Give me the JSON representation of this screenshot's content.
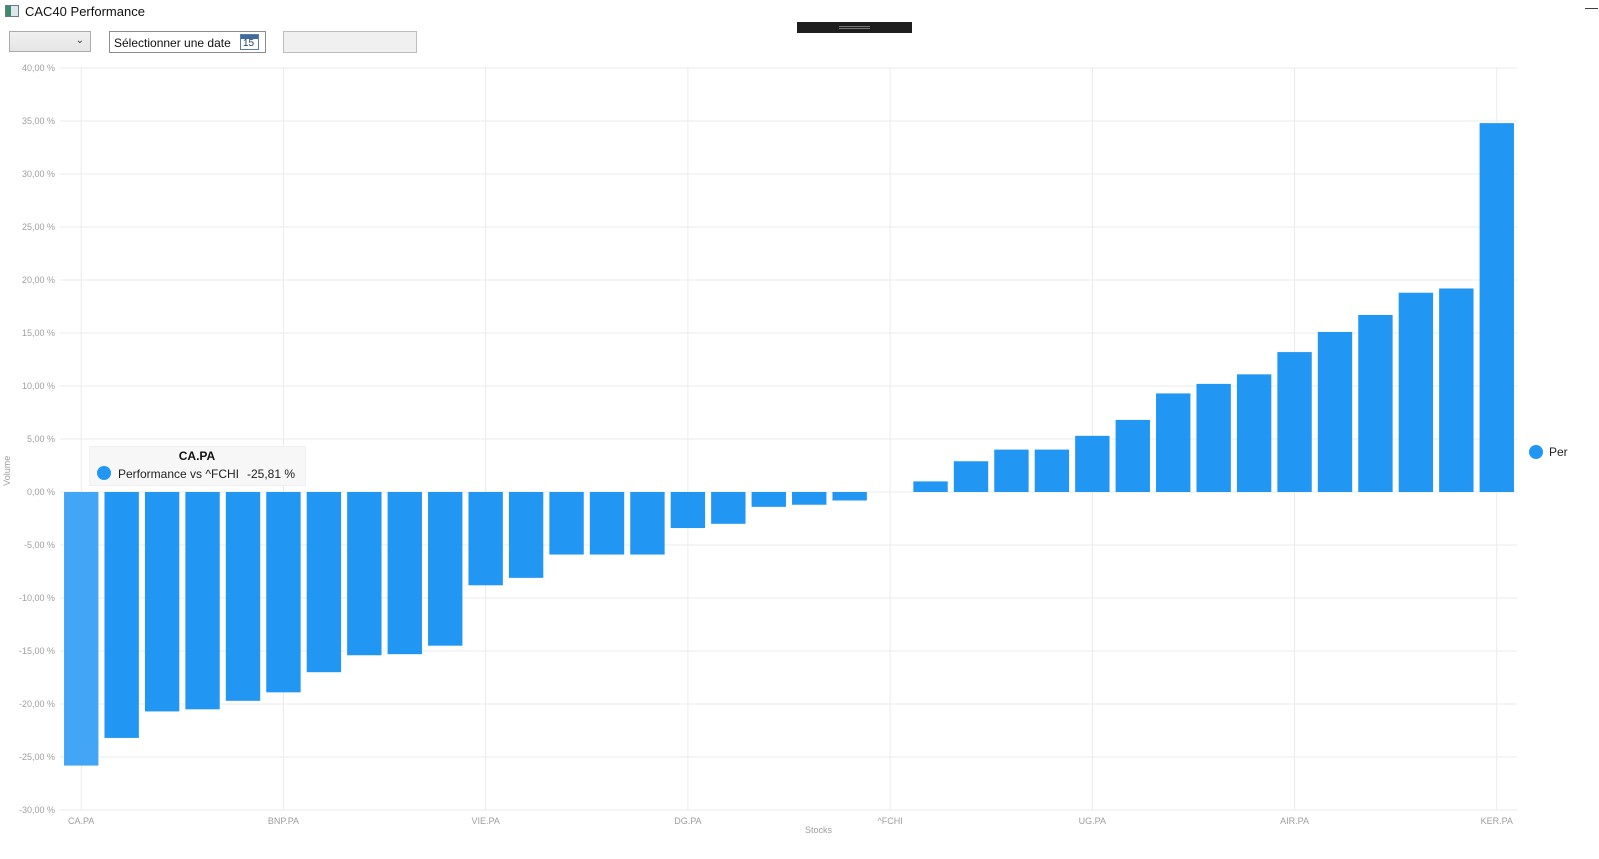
{
  "window": {
    "title": "CAC40 Performance",
    "minimize_glyph": "—"
  },
  "toolbar": {
    "combo_value": "",
    "date_placeholder": "Sélectionner une date",
    "calendar_day": "15",
    "text_value": ""
  },
  "tooltip": {
    "title": "CA.PA",
    "series": "Performance vs ^FCHI",
    "value": "-25,81 %"
  },
  "legend": {
    "label": "Per"
  },
  "colors": {
    "bar": "#2196f3",
    "bar_highlight": "#42a5f5",
    "grid": "#ebebeb",
    "axis_text": "#9e9e9e"
  },
  "chart_data": {
    "type": "bar",
    "xlabel": "Stocks",
    "ylabel": "Volume",
    "ylim": [
      -30,
      40
    ],
    "y_ticks": [
      "-30,00 %",
      "-25,00 %",
      "-20,00 %",
      "-15,00 %",
      "-10,00 %",
      "-5,00 %",
      "0,00 %",
      "5,00 %",
      "10,00 %",
      "15,00 %",
      "20,00 %",
      "25,00 %",
      "30,00 %",
      "35,00 %",
      "40,00 %"
    ],
    "x_tick_labels": [
      "CA.PA",
      "BNP.PA",
      "VIE.PA",
      "DG.PA",
      "^FCHI",
      "UG.PA",
      "AIR.PA",
      "KER.PA"
    ],
    "grid": true,
    "legend_position": "right",
    "highlighted_index": 0,
    "series": [
      {
        "name": "Performance vs ^FCHI",
        "values": [
          -25.81,
          -23.2,
          -20.7,
          -20.5,
          -19.7,
          -18.9,
          -17.0,
          -15.4,
          -15.3,
          -14.5,
          -8.8,
          -8.1,
          -5.9,
          -5.9,
          -5.9,
          -3.4,
          -3.0,
          -1.4,
          -1.2,
          -0.8,
          0.0,
          1.0,
          2.9,
          4.0,
          4.0,
          5.3,
          6.8,
          9.3,
          10.2,
          11.1,
          13.2,
          15.1,
          16.7,
          18.8,
          19.2,
          34.8
        ]
      }
    ]
  }
}
